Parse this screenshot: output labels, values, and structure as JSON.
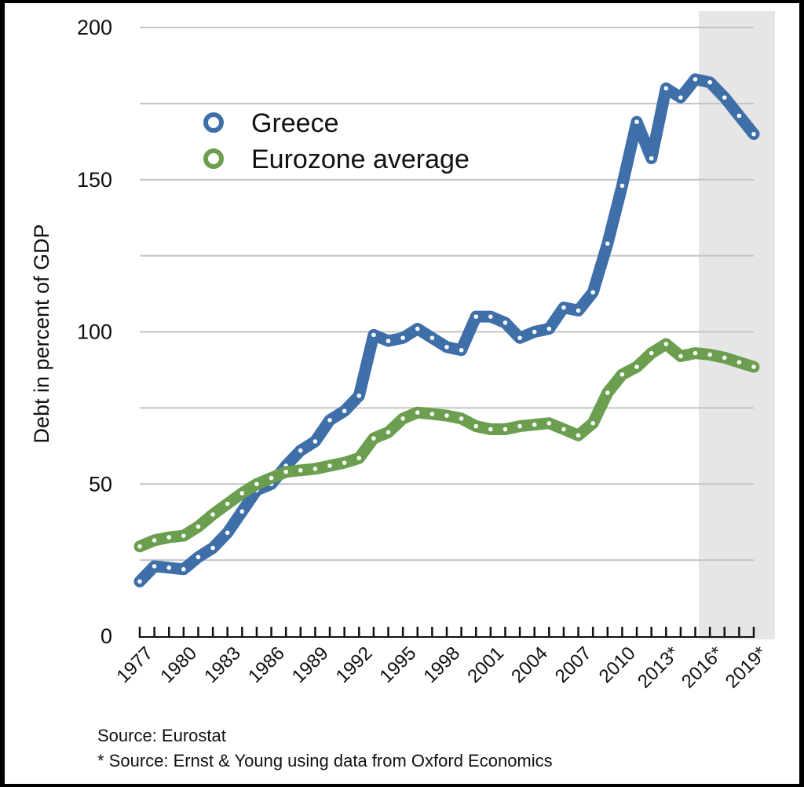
{
  "chart_data": {
    "type": "line",
    "title": "",
    "xlabel": "",
    "ylabel": "Debt in percent of GDP",
    "ylim": [
      0,
      200
    ],
    "yticks": [
      0,
      50,
      100,
      150,
      200
    ],
    "xlim": [
      1977,
      2019
    ],
    "xtick_labels": [
      {
        "year": 1977,
        "label": "1977"
      },
      {
        "year": 1980,
        "label": "1980"
      },
      {
        "year": 1983,
        "label": "1983"
      },
      {
        "year": 1986,
        "label": "1986"
      },
      {
        "year": 1989,
        "label": "1989"
      },
      {
        "year": 1992,
        "label": "1992"
      },
      {
        "year": 1995,
        "label": "1995"
      },
      {
        "year": 1998,
        "label": "1998"
      },
      {
        "year": 2001,
        "label": "2001"
      },
      {
        "year": 2004,
        "label": "2004"
      },
      {
        "year": 2007,
        "label": "2007"
      },
      {
        "year": 2010,
        "label": "2010"
      },
      {
        "year": 2013,
        "label": "2013*"
      },
      {
        "year": 2016,
        "label": "2016*"
      },
      {
        "year": 2019,
        "label": "2019*"
      }
    ],
    "projection_start": 2016,
    "grid": true,
    "legend_position": "upper-left",
    "x": [
      1977,
      1978,
      1979,
      1980,
      1981,
      1982,
      1983,
      1984,
      1985,
      1986,
      1987,
      1988,
      1989,
      1990,
      1991,
      1992,
      1993,
      1994,
      1995,
      1996,
      1997,
      1998,
      1999,
      2000,
      2001,
      2002,
      2003,
      2004,
      2005,
      2006,
      2007,
      2008,
      2009,
      2010,
      2011,
      2012,
      2013,
      2014,
      2015,
      2016,
      2017,
      2018,
      2019
    ],
    "series": [
      {
        "name": "Greece",
        "color": "#3f6fa8",
        "values": [
          18,
          23,
          22.5,
          22,
          26,
          29,
          34,
          41,
          48,
          50,
          56,
          61,
          64,
          71,
          74,
          79,
          99,
          97,
          98,
          101,
          98,
          95,
          94,
          105,
          105,
          103,
          98,
          100,
          101,
          108,
          107,
          113,
          129,
          148,
          169,
          157,
          180,
          177,
          183,
          182,
          177,
          171,
          165
        ]
      },
      {
        "name": "Eurozone average",
        "color": "#6b9e4f",
        "values": [
          29.5,
          31.5,
          32.5,
          33,
          36,
          40,
          43.5,
          47,
          50,
          52,
          54,
          54.5,
          55,
          56,
          57,
          58.5,
          65,
          67,
          71.5,
          73.5,
          73,
          72.5,
          71.5,
          69,
          68,
          68,
          69,
          69.5,
          70,
          68,
          66,
          70,
          80,
          86,
          88.5,
          93,
          96,
          92,
          93,
          92.5,
          91.5,
          90,
          88.5
        ]
      }
    ]
  },
  "footnotes": {
    "source": "Source: Eurostat",
    "source_projection": "* Source: Ernst & Young using data from Oxford Economics"
  }
}
